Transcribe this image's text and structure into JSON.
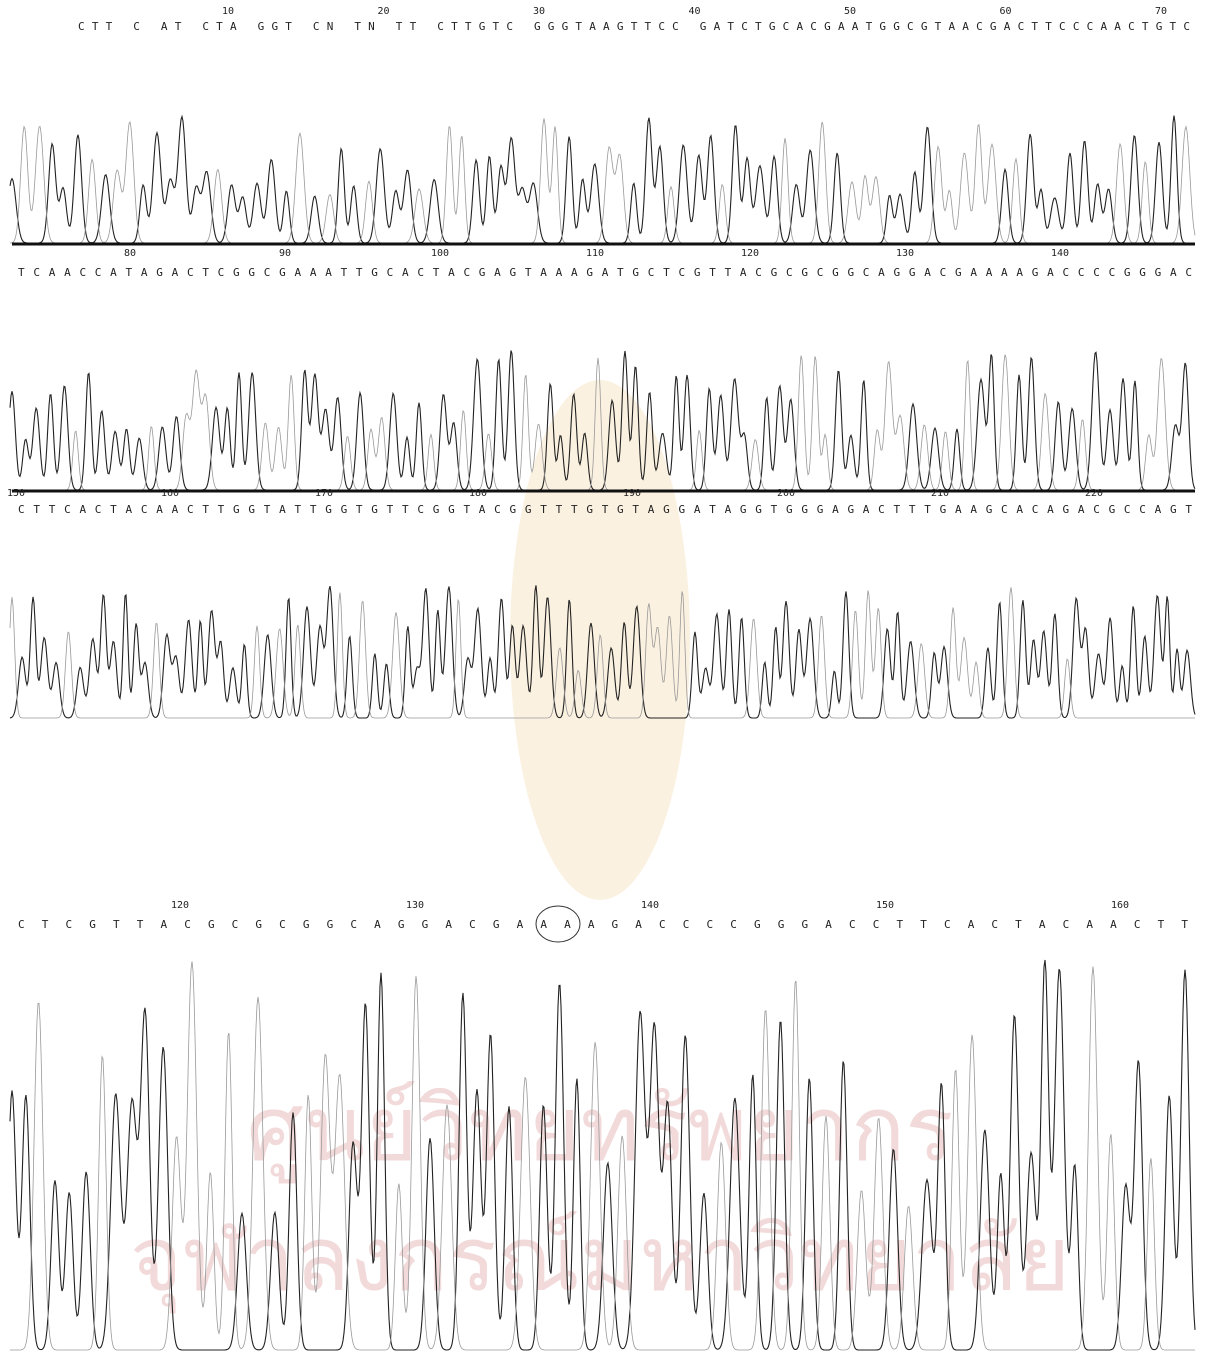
{
  "panels": [
    {
      "positions": [
        10,
        20,
        30,
        40,
        50,
        60,
        70
      ],
      "sequence": "CTT C AT CTA GGT CN TN TT CTTGTC GGGTAAGTTCC GATCTGCACGAATGGCGTAACGACTTCCCAACTGTC"
    },
    {
      "positions": [
        80,
        90,
        100,
        110,
        120,
        130,
        140
      ],
      "sequence": "TCAACCATAGACTCGGCGAAATTGCACTACGAGTAAAGATGCTCGTTACGCGCGGCAGGACGAAAAGACCCCGGGAC"
    },
    {
      "positions": [
        150,
        160,
        170,
        180,
        190,
        200,
        210,
        220
      ],
      "sequence": "CTTCACTACAACTTGGTATTGGTGTTCGGTACGGTTTGTGTAGGATAGGTGGGAGACTTTGAAGCACAGACGCCAGT"
    },
    {
      "positions": [
        120,
        130,
        140,
        150,
        160
      ],
      "sequence": "CTCGTTACGCGCGGCAGGACGAAAAGACCCCGGGACCTTCACTACAACTT"
    }
  ],
  "watermark": {
    "line1": "ศูนย์วิทยทรัพยากร",
    "line2": "จุฬาลงกรณ์มหาวิทยาลัย"
  }
}
